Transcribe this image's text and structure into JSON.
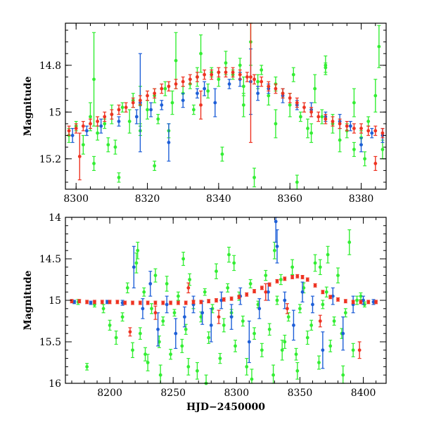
{
  "chart_data": [
    {
      "type": "scatter",
      "title": "",
      "xlabel": "",
      "ylabel": "Magnitude",
      "xlim": [
        8297,
        8387
      ],
      "ylim": [
        15.33,
        14.62
      ],
      "y_inverted": true,
      "grid": false,
      "x_ticks": [
        8300,
        8320,
        8340,
        8360,
        8380
      ],
      "y_ticks": [
        14.8,
        15,
        15.2
      ],
      "x_tick_labels": [
        "8300",
        "8320",
        "8340",
        "8360",
        "8380"
      ],
      "y_tick_labels": [
        "14.8",
        "15",
        "15.2"
      ],
      "series": [
        {
          "color": "#33ee33",
          "x": [
            8298,
            8300,
            8302,
            8304,
            8305,
            8306,
            8308,
            8310,
            8311,
            8313,
            8315,
            8316,
            8318,
            8320,
            8322,
            8323,
            8325,
            8327,
            8328,
            8330,
            8332,
            8334,
            8335,
            8337,
            8338,
            8340,
            8342,
            8344,
            8346,
            8347,
            8349,
            8351,
            8352,
            8354,
            8356,
            8358,
            8360,
            8361,
            8363,
            8365,
            8367,
            8369,
            8370,
            8372,
            8374,
            8376,
            8378,
            8380,
            8382,
            8384,
            8386,
            8305,
            8312,
            8318,
            8326,
            8333,
            8341,
            8350,
            8356,
            8362,
            8370,
            8378,
            8385,
            8309,
            8322,
            8347,
            8366,
            8381
          ],
          "y": [
            15.1,
            15.06,
            15.14,
            15.02,
            14.86,
            15.09,
            15.05,
            15.01,
            15.15,
            14.98,
            15.04,
            14.95,
            15.08,
            14.99,
            14.93,
            15.03,
            14.9,
            14.96,
            14.78,
            14.92,
            14.88,
            14.85,
            14.75,
            14.91,
            14.83,
            14.86,
            14.79,
            14.84,
            14.8,
            14.89,
            14.7,
            14.87,
            14.82,
            14.93,
            14.88,
            14.92,
            14.97,
            14.84,
            15.02,
            15.07,
            14.9,
            15.02,
            14.81,
            15.05,
            15.12,
            15.08,
            14.96,
            15.11,
            15.04,
            14.93,
            15.16,
            15.22,
            15.28,
            14.97,
            15.08,
            14.99,
            15.18,
            15.28,
            15.05,
            15.3,
            14.8,
            15.16,
            14.72,
            15.14,
            15.23,
            14.97,
            15.09,
            15.2
          ],
          "err": [
            0.03,
            0.02,
            0.04,
            0.06,
            0.2,
            0.03,
            0.02,
            0.04,
            0.03,
            0.02,
            0.05,
            0.03,
            0.02,
            0.04,
            0.03,
            0.02,
            0.03,
            0.05,
            0.12,
            0.03,
            0.02,
            0.04,
            0.08,
            0.03,
            0.02,
            0.03,
            0.05,
            0.02,
            0.03,
            0.04,
            0.1,
            0.03,
            0.02,
            0.04,
            0.03,
            0.02,
            0.05,
            0.03,
            0.02,
            0.04,
            0.06,
            0.03,
            0.02,
            0.04,
            0.05,
            0.03,
            0.06,
            0.03,
            0.02,
            0.07,
            0.04,
            0.03,
            0.02,
            0.08,
            0.03,
            0.02,
            0.03,
            0.04,
            0.06,
            0.03,
            0.04,
            0.03,
            0.09,
            0.03,
            0.02,
            0.05,
            0.04,
            0.03
          ]
        },
        {
          "color": "#1e5fd8",
          "x": [
            8299,
            8303,
            8307,
            8312,
            8317,
            8318,
            8321,
            8324,
            8326,
            8330,
            8334,
            8336,
            8339,
            8343,
            8346,
            8349,
            8351,
            8354,
            8358,
            8362,
            8366,
            8370,
            8374,
            8377,
            8380,
            8383,
            8386
          ],
          "y": [
            15.1,
            15.08,
            15.06,
            15.04,
            15.02,
            14.96,
            14.99,
            14.97,
            15.13,
            14.95,
            14.92,
            14.9,
            14.96,
            14.88,
            14.86,
            14.87,
            14.92,
            14.9,
            14.93,
            14.97,
            14.99,
            15.02,
            15.04,
            15.06,
            15.14,
            15.09,
            15.1
          ],
          "err": [
            0.03,
            0.02,
            0.03,
            0.02,
            0.03,
            0.21,
            0.03,
            0.02,
            0.08,
            0.03,
            0.02,
            0.03,
            0.06,
            0.02,
            0.03,
            0.14,
            0.03,
            0.02,
            0.03,
            0.02,
            0.03,
            0.02,
            0.03,
            0.02,
            0.03,
            0.02,
            0.03
          ]
        },
        {
          "color": "#ee3322",
          "x": [
            8298,
            8300,
            8302,
            8304,
            8306,
            8308,
            8310,
            8312,
            8314,
            8316,
            8318,
            8320,
            8322,
            8324,
            8326,
            8328,
            8330,
            8332,
            8334,
            8336,
            8338,
            8340,
            8342,
            8344,
            8346,
            8348,
            8350,
            8352,
            8354,
            8356,
            8358,
            8360,
            8362,
            8364,
            8366,
            8368,
            8370,
            8372,
            8374,
            8376,
            8378,
            8380,
            8382,
            8384,
            8386,
            8301,
            8335,
            8349,
            8384
          ],
          "y": [
            15.08,
            15.07,
            15.06,
            15.05,
            15.04,
            15.02,
            15.01,
            14.99,
            14.98,
            14.96,
            14.95,
            14.93,
            14.92,
            14.9,
            14.89,
            14.88,
            14.87,
            14.86,
            14.85,
            14.84,
            14.84,
            14.83,
            14.83,
            14.83,
            14.84,
            14.85,
            14.86,
            14.87,
            14.89,
            14.9,
            14.92,
            14.94,
            14.96,
            14.98,
            15.0,
            15.02,
            15.03,
            15.04,
            15.05,
            15.06,
            15.07,
            15.07,
            15.08,
            15.08,
            15.09,
            15.19,
            14.97,
            14.85,
            15.22
          ],
          "err": [
            0.02,
            0.02,
            0.02,
            0.02,
            0.02,
            0.02,
            0.02,
            0.02,
            0.02,
            0.02,
            0.02,
            0.02,
            0.02,
            0.02,
            0.02,
            0.02,
            0.02,
            0.02,
            0.02,
            0.02,
            0.02,
            0.02,
            0.02,
            0.02,
            0.02,
            0.02,
            0.02,
            0.02,
            0.02,
            0.02,
            0.02,
            0.02,
            0.02,
            0.02,
            0.02,
            0.02,
            0.02,
            0.02,
            0.02,
            0.02,
            0.02,
            0.02,
            0.02,
            0.02,
            0.02,
            0.1,
            0.06,
            0.28,
            0.03
          ]
        }
      ]
    },
    {
      "type": "scatter",
      "title": "",
      "xlabel": "HJD−2450000",
      "ylabel": "Magnitude",
      "xlim": [
        8165,
        8418
      ],
      "ylim": [
        16,
        14
      ],
      "y_inverted": true,
      "grid": false,
      "x_ticks": [
        8200,
        8250,
        8300,
        8350,
        8400
      ],
      "y_ticks": [
        14,
        14.5,
        15,
        15.5,
        16
      ],
      "x_tick_labels": [
        "8200",
        "8250",
        "8300",
        "8350",
        "8400"
      ],
      "y_tick_labels": [
        "14",
        "14.5",
        "15",
        "15.5",
        "16"
      ],
      "series": [
        {
          "color": "#33ee33",
          "x": [
            8175,
            8182,
            8188,
            8195,
            8200,
            8205,
            8210,
            8214,
            8218,
            8221,
            8224,
            8227,
            8230,
            8233,
            8236,
            8239,
            8242,
            8245,
            8248,
            8251,
            8254,
            8257,
            8260,
            8263,
            8266,
            8269,
            8272,
            8275,
            8278,
            8281,
            8284,
            8287,
            8290,
            8293,
            8296,
            8299,
            8302,
            8305,
            8308,
            8311,
            8314,
            8317,
            8320,
            8323,
            8326,
            8329,
            8332,
            8335,
            8338,
            8341,
            8344,
            8347,
            8350,
            8353,
            8356,
            8359,
            8362,
            8365,
            8368,
            8371,
            8374,
            8377,
            8380,
            8383,
            8386,
            8389,
            8392,
            8395,
            8398,
            8401,
            8222,
            8240,
            8258,
            8276,
            8294,
            8312,
            8330,
            8348,
            8366,
            8384,
            8228,
            8262,
            8298,
            8336,
            8372
          ],
          "y": [
            15.02,
            15.8,
            15.05,
            15.1,
            15.3,
            15.45,
            15.2,
            14.85,
            15.6,
            14.55,
            15.4,
            14.9,
            15.75,
            15.1,
            14.7,
            15.5,
            15.25,
            14.8,
            15.65,
            15.15,
            14.95,
            15.55,
            15.35,
            14.75,
            15.05,
            15.85,
            15.2,
            14.9,
            15.45,
            15.1,
            14.65,
            15.7,
            15.3,
            14.85,
            15.15,
            15.55,
            14.95,
            15.25,
            15.8,
            14.8,
            15.4,
            15.05,
            15.6,
            14.7,
            15.35,
            15.9,
            15.0,
            14.75,
            15.5,
            15.2,
            14.6,
            15.65,
            15.1,
            14.85,
            15.45,
            15.3,
            14.55,
            15.75,
            15.05,
            14.9,
            15.55,
            15.25,
            14.7,
            15.4,
            15.15,
            14.3,
            15.6,
            15.0,
            14.95,
            15.05,
            14.4,
            15.9,
            14.5,
            16.0,
            14.45,
            15.95,
            14.4,
            15.85,
            14.6,
            15.9,
            15.65,
            15.8,
            14.55,
            15.6,
            14.45
          ],
          "err": [
            0.03,
            0.04,
            0.03,
            0.05,
            0.06,
            0.08,
            0.05,
            0.06,
            0.09,
            0.12,
            0.07,
            0.05,
            0.1,
            0.06,
            0.08,
            0.07,
            0.05,
            0.09,
            0.06,
            0.04,
            0.05,
            0.08,
            0.06,
            0.07,
            0.05,
            0.1,
            0.06,
            0.04,
            0.07,
            0.05,
            0.09,
            0.06,
            0.08,
            0.05,
            0.04,
            0.07,
            0.05,
            0.06,
            0.1,
            0.05,
            0.07,
            0.04,
            0.08,
            0.06,
            0.07,
            0.12,
            0.05,
            0.06,
            0.08,
            0.05,
            0.09,
            0.07,
            0.05,
            0.06,
            0.08,
            0.06,
            0.1,
            0.08,
            0.05,
            0.06,
            0.07,
            0.05,
            0.09,
            0.06,
            0.05,
            0.15,
            0.08,
            0.05,
            0.04,
            0.03,
            0.1,
            0.12,
            0.08,
            0.1,
            0.09,
            0.12,
            0.1,
            0.1,
            0.09,
            0.11,
            0.08,
            0.1,
            0.09,
            0.12,
            0.1
          ]
        },
        {
          "color": "#1e5fd8",
          "x": [
            8172,
            8185,
            8198,
            8210,
            8219,
            8226,
            8232,
            8238,
            8245,
            8252,
            8259,
            8266,
            8273,
            8280,
            8288,
            8296,
            8303,
            8310,
            8318,
            8325,
            8331,
            8332,
            8338,
            8345,
            8352,
            8360,
            8368,
            8376,
            8384,
            8392,
            8400,
            8408
          ],
          "y": [
            15.02,
            15.03,
            15.02,
            15.03,
            14.6,
            15.1,
            14.8,
            15.35,
            15.05,
            15.4,
            15.2,
            15.05,
            15.15,
            15.3,
            15.0,
            15.2,
            14.95,
            15.5,
            15.1,
            14.9,
            14.05,
            14.35,
            15.0,
            15.3,
            14.9,
            15.05,
            15.6,
            14.95,
            15.4,
            15.05,
            15.0,
            15.02
          ],
          "err": [
            0.02,
            0.02,
            0.02,
            0.03,
            0.25,
            0.12,
            0.15,
            0.2,
            0.1,
            0.18,
            0.12,
            0.1,
            0.14,
            0.2,
            0.1,
            0.15,
            0.1,
            0.25,
            0.12,
            0.1,
            0.25,
            0.2,
            0.1,
            0.18,
            0.12,
            0.1,
            0.22,
            0.1,
            0.2,
            0.1,
            0.05,
            0.03
          ]
        },
        {
          "color": "#ee3322",
          "x": [
            8170,
            8176,
            8182,
            8188,
            8194,
            8200,
            8206,
            8212,
            8218,
            8224,
            8230,
            8236,
            8242,
            8248,
            8254,
            8260,
            8266,
            8272,
            8278,
            8284,
            8290,
            8296,
            8302,
            8308,
            8314,
            8320,
            8326,
            8332,
            8338,
            8344,
            8348,
            8352,
            8356,
            8362,
            8368,
            8374,
            8380,
            8386,
            8392,
            8398,
            8404,
            8410,
            8216,
            8236,
            8262,
            8286,
            8323,
            8340,
            8366,
            8397
          ],
          "y": [
            15.01,
            15.01,
            15.02,
            15.02,
            15.02,
            15.02,
            15.02,
            15.03,
            15.03,
            15.03,
            15.03,
            15.03,
            15.03,
            15.03,
            15.03,
            15.03,
            15.02,
            15.02,
            15.01,
            15.0,
            14.99,
            14.98,
            14.96,
            14.93,
            14.89,
            14.85,
            14.81,
            14.77,
            14.74,
            14.72,
            14.71,
            14.72,
            14.75,
            14.82,
            14.9,
            14.96,
            14.99,
            15.01,
            15.02,
            15.02,
            15.02,
            15.02,
            15.38,
            15.15,
            14.85,
            15.2,
            14.9,
            15.1,
            15.25,
            15.6
          ],
          "err": [
            0.02,
            0.02,
            0.02,
            0.02,
            0.02,
            0.02,
            0.02,
            0.02,
            0.02,
            0.02,
            0.02,
            0.02,
            0.02,
            0.02,
            0.02,
            0.02,
            0.02,
            0.02,
            0.02,
            0.02,
            0.02,
            0.02,
            0.02,
            0.02,
            0.02,
            0.02,
            0.02,
            0.02,
            0.02,
            0.02,
            0.02,
            0.02,
            0.02,
            0.02,
            0.02,
            0.02,
            0.02,
            0.02,
            0.02,
            0.02,
            0.02,
            0.02,
            0.05,
            0.08,
            0.06,
            0.08,
            0.1,
            0.06,
            0.07,
            0.1
          ]
        }
      ]
    }
  ]
}
